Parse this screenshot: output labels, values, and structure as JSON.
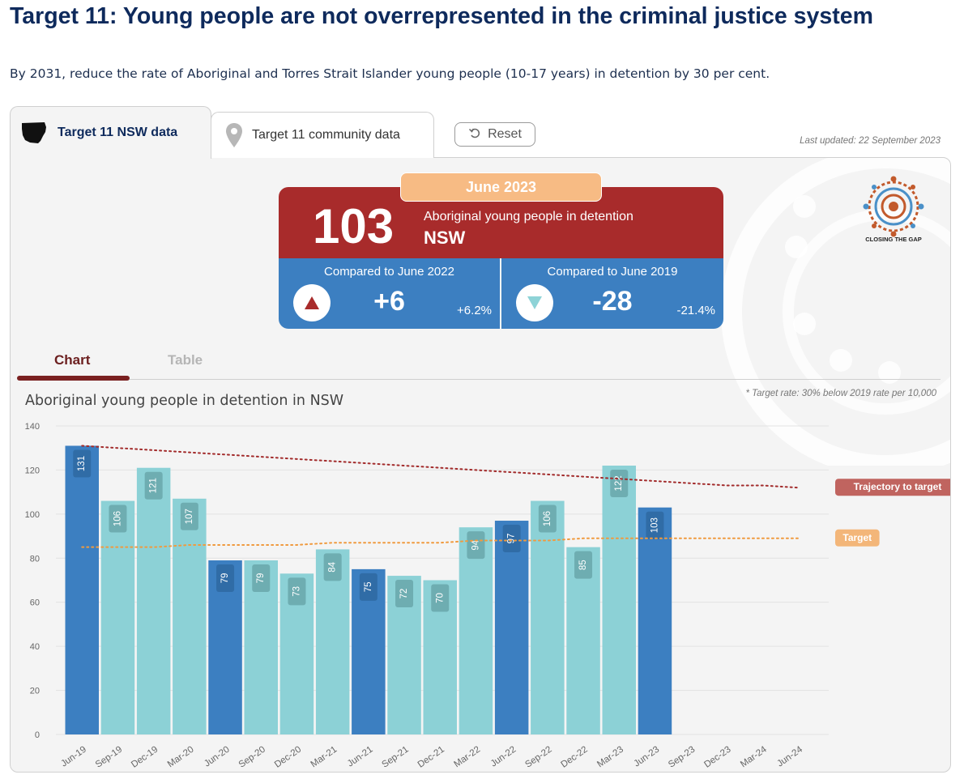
{
  "header": {
    "title": "Target 11: Young people are not overrepresented in the criminal justice system",
    "subtitle": "By 2031, reduce the rate of Aboriginal and Torres Strait Islander young people (10-17 years) in detention by 30 per cent."
  },
  "tabs": {
    "nsw_label": "Target 11 NSW data",
    "community_label": "Target 11 community data",
    "reset_label": "Reset",
    "last_updated": "Last updated: 22 September 2023"
  },
  "kpi": {
    "month": "June 2023",
    "value": "103",
    "description": "Aboriginal young people in detention",
    "region": "NSW",
    "compare_2022": {
      "title": "Compared to June 2022",
      "change": "+6",
      "pct": "+6.2%",
      "direction": "up",
      "color": "#a82b2b"
    },
    "compare_2019": {
      "title": "Compared to June 2019",
      "change": "-28",
      "pct": "-21.4%",
      "direction": "down",
      "color": "#8ed3d7"
    }
  },
  "logo_text": "CLOSING THE GAP",
  "view_tabs": {
    "chart": "Chart",
    "table": "Table"
  },
  "colors": {
    "june_bar": "#3c7fc1",
    "other_bar": "#8cd1d6",
    "trajectory": "#a22b2b",
    "target": "#f09a3e",
    "trajectory_label_bg": "#c0645f",
    "target_label_bg": "#f3b679"
  },
  "chart_data": {
    "type": "bar",
    "title": "Aboriginal young people in detention in NSW",
    "note": "* Target rate: 30% below 2019 rate per 10,000",
    "categories": [
      "Jun-19",
      "Sep-19",
      "Dec-19",
      "Mar-20",
      "Jun-20",
      "Sep-20",
      "Dec-20",
      "Mar-21",
      "Jun-21",
      "Sep-21",
      "Dec-21",
      "Mar-22",
      "Jun-22",
      "Sep-22",
      "Dec-22",
      "Mar-23",
      "Jun-23",
      "Sep-23",
      "Dec-23",
      "Mar-24",
      "Jun-24"
    ],
    "values": [
      131,
      106,
      121,
      107,
      79,
      79,
      73,
      84,
      75,
      72,
      70,
      94,
      97,
      106,
      85,
      122,
      103,
      null,
      null,
      null,
      null
    ],
    "june_categories": [
      "Jun-19",
      "Jun-20",
      "Jun-21",
      "Jun-22",
      "Jun-23"
    ],
    "ylim": [
      0,
      140
    ],
    "yticks": [
      0,
      20,
      40,
      60,
      80,
      100,
      120,
      140
    ],
    "grid": true,
    "lines": [
      {
        "name": "Trajectory to target",
        "values": [
          131,
          130,
          129,
          128,
          127,
          126,
          125,
          124,
          123,
          122,
          121,
          120,
          119,
          118,
          117,
          116,
          115,
          114,
          113,
          113,
          112
        ]
      },
      {
        "name": "Target",
        "values": [
          85,
          85,
          85,
          86,
          86,
          86,
          86,
          87,
          87,
          87,
          87,
          88,
          88,
          88,
          89,
          89,
          89,
          89,
          89,
          89,
          89
        ]
      }
    ]
  }
}
